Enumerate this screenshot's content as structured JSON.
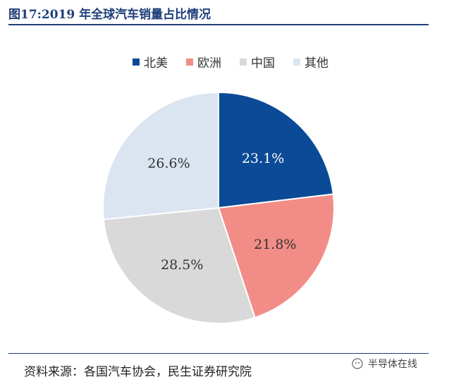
{
  "title": "图17:2019 年全球汽车销量占比情况",
  "source": "资料来源：各国汽车协会，民生证券研究院",
  "watermark": "半导体在线",
  "chart_data": {
    "type": "pie",
    "slices": [
      {
        "name": "北美",
        "value": 23.1,
        "label": "23.1%",
        "color": "#0b4a96",
        "label_color": "#ffffff"
      },
      {
        "name": "欧洲",
        "value": 21.8,
        "label": "21.8%",
        "color": "#f28c87",
        "label_color": "#333333"
      },
      {
        "name": "中国",
        "value": 28.5,
        "label": "28.5%",
        "color": "#d9d9d9",
        "label_color": "#333333"
      },
      {
        "name": "其他",
        "value": 26.6,
        "label": "26.6%",
        "color": "#dbe5f1",
        "label_color": "#333333"
      }
    ],
    "legend_position": "top"
  }
}
